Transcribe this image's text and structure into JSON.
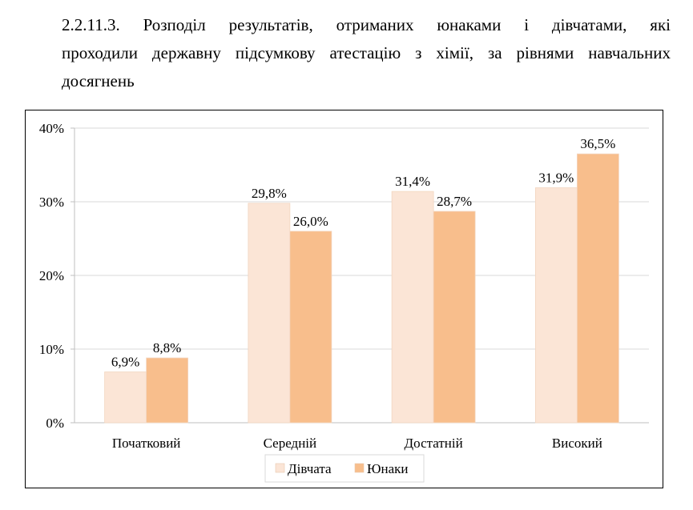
{
  "caption": {
    "lines": [
      "2.2.11.3. Розподіл результатів, отриманих юнаками і дівчатами, які",
      "проходили державну підсумкову атестацію з хімії, за рівнями навчальних",
      "досягнень"
    ]
  },
  "chart_data": {
    "type": "bar",
    "title": "",
    "xlabel": "",
    "ylabel": "",
    "categories": [
      "Початковий",
      "Середній",
      "Достатній",
      "Високий"
    ],
    "series": [
      {
        "name": "Дівчата",
        "values": [
          6.9,
          29.8,
          31.4,
          31.9
        ],
        "labels": [
          "6,9%",
          "29,8%",
          "31,4%",
          "31,9%"
        ],
        "color": "#FBE5D6"
      },
      {
        "name": "Юнаки",
        "values": [
          8.8,
          26.0,
          28.7,
          36.5
        ],
        "labels": [
          "8,8%",
          "26,0%",
          "28,7%",
          "36,5%"
        ],
        "color": "#F8BE8C"
      }
    ],
    "ylim": [
      0,
      40
    ],
    "yticks": [
      0,
      10,
      20,
      30,
      40
    ],
    "ytick_labels": [
      "0%",
      "10%",
      "20%",
      "30%",
      "40%"
    ],
    "grid": true,
    "legend_position": "bottom"
  }
}
